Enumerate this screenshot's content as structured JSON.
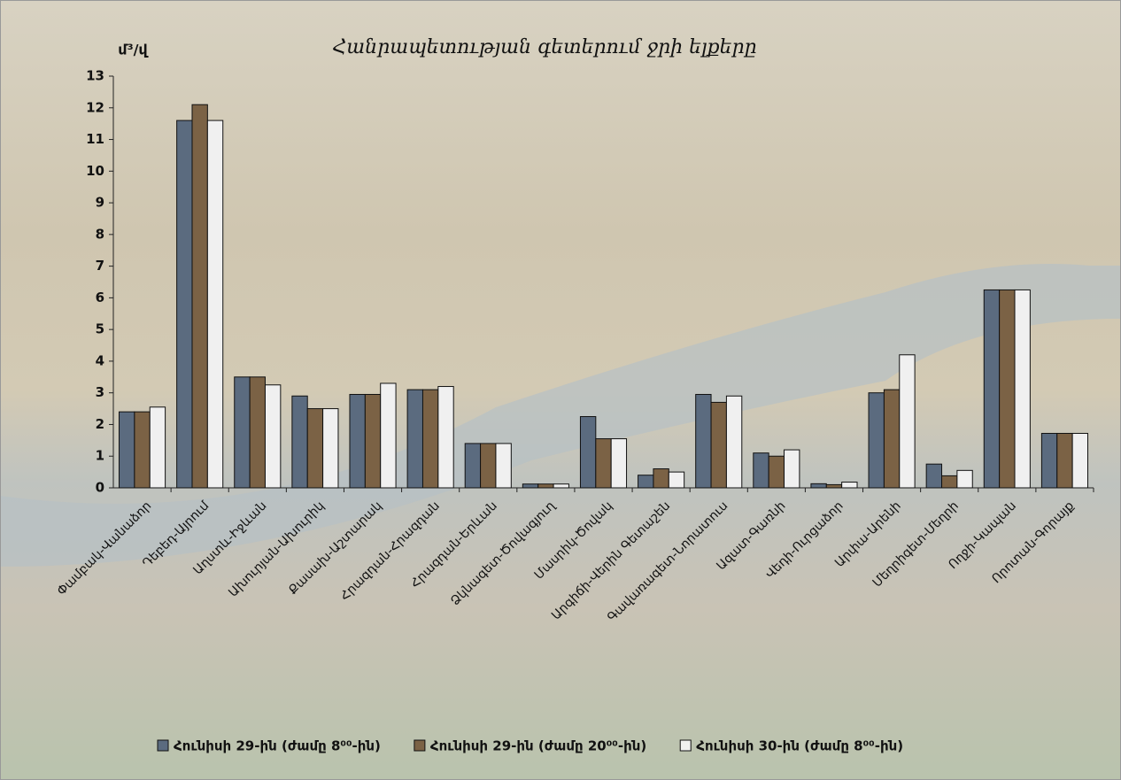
{
  "chart_data": {
    "type": "bar",
    "title": "Հանրապետության գետերում ջրի ելքերը",
    "y_label": "մ³/վ",
    "categories": [
      "Փամբակ-Վանաձոր",
      "Դեբեդ-Այրում",
      "Աղստև-Իջևան",
      "Ախուրյան-Ախուրիկ",
      "Քասախ-Աշտարակ",
      "Հրազդան-Հրազդան",
      "Հրազդան-Երևան",
      "Ձկնագետ-Ծովագյուղ",
      "Մասրիկ-Ծովակ",
      "Արգիճի-Վերին Գետաշեն",
      "Գավառագետ-Նորատուս",
      "Ազատ-Գառնի",
      "Վեդի-Ուրցաձոր",
      "Արփա-Արենի",
      "Մեղրիգետ-Մեղրի",
      "Ողջի-Կապան",
      "Որոտան-Գորայք"
    ],
    "series": [
      {
        "name": "Հունիսի 29-ին (ժամը 8⁰⁰-ին)",
        "color": "#5b6b7f",
        "values": [
          2.4,
          11.6,
          3.5,
          2.9,
          2.95,
          3.1,
          1.4,
          0.12,
          2.25,
          0.4,
          2.95,
          1.1,
          0.13,
          3.0,
          0.75,
          6.25,
          1.72
        ]
      },
      {
        "name": "Հունիսի 29-ին (ժամը 20⁰⁰-ին)",
        "color": "#7b6245",
        "values": [
          2.4,
          12.1,
          3.5,
          2.5,
          2.95,
          3.1,
          1.4,
          0.12,
          1.55,
          0.6,
          2.7,
          1.0,
          0.1,
          3.1,
          0.38,
          6.25,
          1.72
        ]
      },
      {
        "name": "Հունիսի 30-ին (ժամը 8⁰⁰-ին)",
        "color": "#f0f0f0",
        "values": [
          2.55,
          11.6,
          3.25,
          2.5,
          3.3,
          3.2,
          1.4,
          0.12,
          1.55,
          0.5,
          2.9,
          1.2,
          0.18,
          4.2,
          0.55,
          6.25,
          1.72
        ]
      }
    ],
    "ylim": [
      0,
      13
    ],
    "yticks": [
      0,
      1,
      2,
      3,
      4,
      5,
      6,
      7,
      8,
      9,
      10,
      11,
      12,
      13
    ]
  }
}
